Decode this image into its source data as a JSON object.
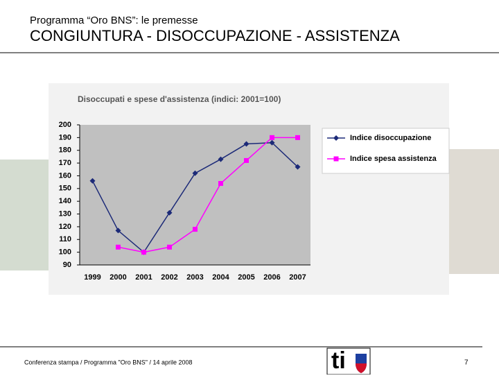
{
  "header": {
    "subtitle": "Programma “Oro BNS”: le premesse",
    "title": "CONGIUNTURA - DISOCCUPAZIONE - ASSISTENZA"
  },
  "chart_data": {
    "type": "line",
    "title": "Disoccupati e spese d'assistenza (indici: 2001=100)",
    "categories": [
      "1999",
      "2000",
      "2001",
      "2002",
      "2003",
      "2004",
      "2005",
      "2006",
      "2007"
    ],
    "series": [
      {
        "name": "Indice disoccupazione",
        "color": "#1c2a78",
        "marker": "diamond",
        "values": [
          156,
          117,
          100,
          131,
          162,
          173,
          185,
          186,
          167
        ]
      },
      {
        "name": "Indice spesa assistenza",
        "color": "#ff00ff",
        "marker": "square",
        "values": [
          null,
          104,
          100,
          104,
          118,
          154,
          172,
          190,
          190
        ]
      }
    ],
    "ylim": [
      90,
      200
    ],
    "yticks": [
      90,
      100,
      110,
      120,
      130,
      140,
      150,
      160,
      170,
      180,
      190,
      200
    ],
    "grid": false,
    "legend": "right"
  },
  "footer": {
    "text": "Conferenza stampa / Programma \"Oro BNS\" / 14 aprile 2008",
    "logo": "ti",
    "page": "7"
  }
}
